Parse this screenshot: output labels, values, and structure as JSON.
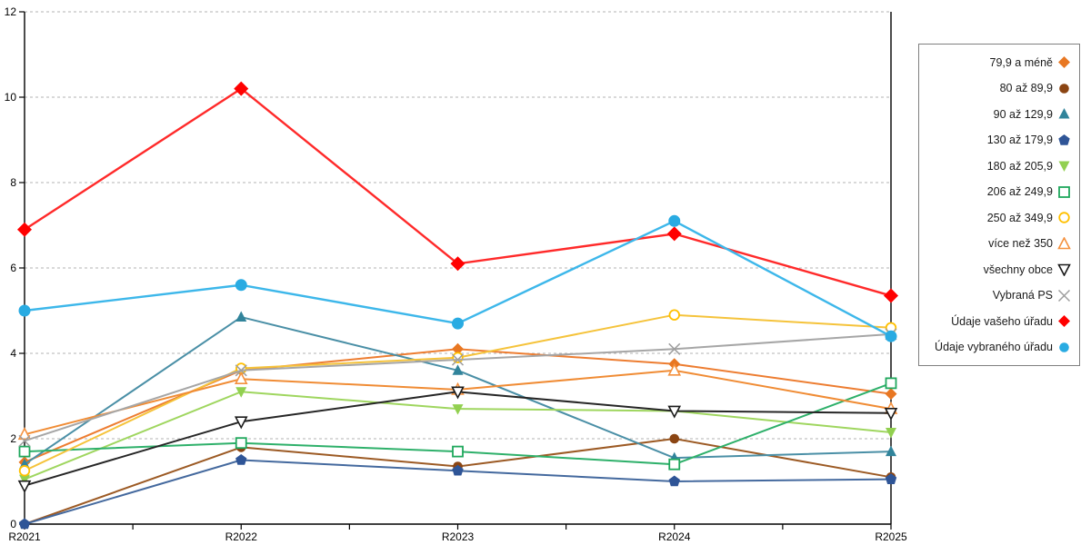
{
  "chart_data": {
    "type": "line",
    "title": "",
    "categories": [
      "R2021",
      "R2022",
      "R2023",
      "R2024",
      "R2025"
    ],
    "ylim": [
      0,
      12
    ],
    "yticks": [
      0,
      2,
      4,
      6,
      8,
      10,
      12
    ],
    "grid": "horizontal dashed gridlines at every y tick",
    "legend_position": "right",
    "series": [
      {
        "name": "79,9 a méně",
        "marker": "diamond-filled",
        "color": "#E87722",
        "line_color": "#ED7D31",
        "values": [
          1.45,
          3.6,
          4.1,
          3.75,
          3.05
        ]
      },
      {
        "name": "80 až 89,9",
        "marker": "circle-filled",
        "color": "#8B4513",
        "line_color": "#9C5A24",
        "values": [
          0,
          1.8,
          1.35,
          2.0,
          1.1
        ]
      },
      {
        "name": "90 až 129,9",
        "marker": "triangle-up-filled",
        "color": "#31849B",
        "line_color": "#4A8FA6",
        "values": [
          1.4,
          4.85,
          3.6,
          1.55,
          1.7
        ]
      },
      {
        "name": "130 až 179,9",
        "marker": "pentagon-filled",
        "color": "#2F5597",
        "line_color": "#44699E",
        "values": [
          0,
          1.5,
          1.25,
          1.0,
          1.05
        ]
      },
      {
        "name": "180 až 205,9",
        "marker": "triangle-down-filled",
        "color": "#92D050",
        "line_color": "#9FD65F",
        "values": [
          1.05,
          3.1,
          2.7,
          2.65,
          2.15
        ]
      },
      {
        "name": "206 až 249,9",
        "marker": "square-open",
        "color": "#1FA75C",
        "line_color": "#2EB06A",
        "values": [
          1.7,
          1.9,
          1.7,
          1.4,
          3.3
        ]
      },
      {
        "name": "250 až 349,9",
        "marker": "circle-open",
        "color": "#FFC000",
        "line_color": "#F5C33B",
        "values": [
          1.25,
          3.65,
          3.9,
          4.9,
          4.6
        ]
      },
      {
        "name": "více než 350",
        "marker": "triangle-up-open",
        "color": "#F4913E",
        "line_color": "#F08C35",
        "values": [
          2.1,
          3.4,
          3.15,
          3.6,
          2.7
        ]
      },
      {
        "name": "všechny obce",
        "marker": "triangle-down-open",
        "color": "#1A1A1A",
        "line_color": "#262626",
        "values": [
          0.9,
          2.4,
          3.1,
          2.65,
          2.6
        ]
      },
      {
        "name": "Vybraná PS",
        "marker": "x",
        "color": "#9E9E9E",
        "line_color": "#A6A6A6",
        "values": [
          1.95,
          3.6,
          3.85,
          4.1,
          4.45
        ]
      },
      {
        "name": "Údaje vašeho úřadu",
        "marker": "diamond-filled",
        "color": "#FF0000",
        "line_color": "#FF2A2A",
        "values": [
          6.9,
          10.2,
          6.1,
          6.8,
          5.35
        ],
        "emphasis": true
      },
      {
        "name": "Údaje vybraného úřadu",
        "marker": "circle-filled",
        "color": "#29ABE2",
        "line_color": "#3DB7EA",
        "values": [
          5.0,
          5.6,
          4.7,
          7.1,
          4.4
        ],
        "emphasis": true
      }
    ]
  },
  "style_colors": {
    "axis": "#000000",
    "gridline": "#b3b3b3",
    "legend_border": "#7f7f7f",
    "background": "#ffffff"
  }
}
